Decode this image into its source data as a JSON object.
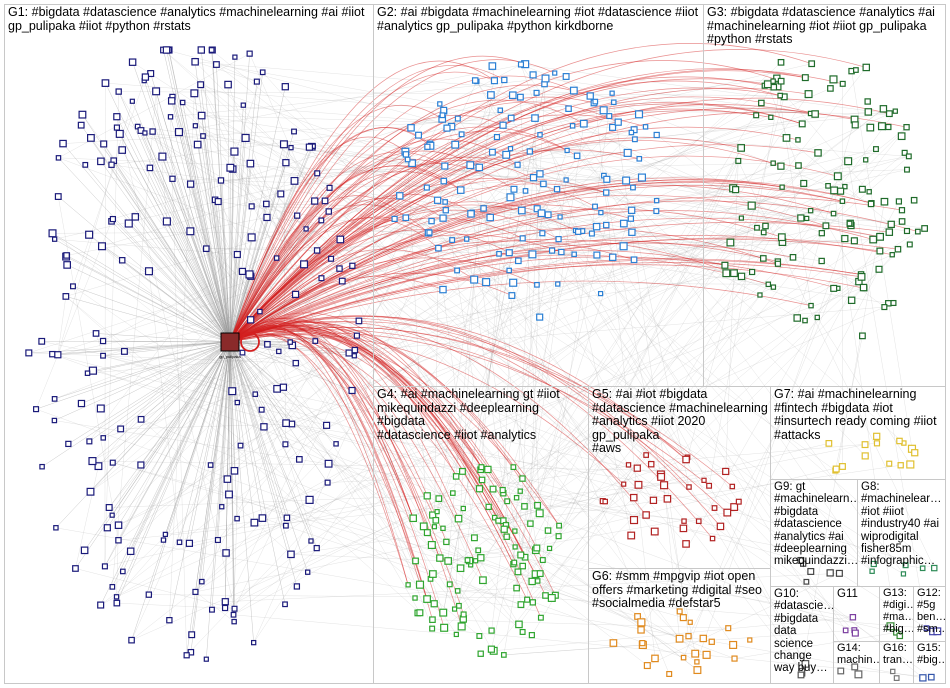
{
  "groups": [
    {
      "id": "G1",
      "label": "G1: #bigdata #datascience #analytics #machinelearning #ai #iiot\ngp_pulipaka #iiot #python #rstats",
      "color": "#1a1a7a"
    },
    {
      "id": "G2",
      "label": "G2: #ai #bigdata #machinelearning #iot #datascience #iiot\n#analytics gp_pulipaka #python kirkdborne",
      "color": "#2a7fd4"
    },
    {
      "id": "G3",
      "label": "G3: #bigdata #datascience #analytics #ai\n#machinelearning #iot #iiot gp_pulipaka\n#python #rstats",
      "color": "#1f6b2a"
    },
    {
      "id": "G4",
      "label": "G4: #ai #machinelearning gt #iiot\nmikequindazzi #deeplearning #bigdata\n#datascience #iiot #analytics",
      "color": "#2fa52f"
    },
    {
      "id": "G5",
      "label": "G5: #ai #iot #bigdata\n#datascience #machinelearning\n#analytics #iiot 2020 gp_pulipaka\n#aws",
      "color": "#b22222"
    },
    {
      "id": "G6",
      "label": "G6: #smm #mpgvip #iot open\noffers #marketing #digital #seo\n#socialmedia #defstar5",
      "color": "#e08a1e"
    },
    {
      "id": "G7",
      "label": "G7: #ai #machinelearning\n#fintech #bigdata #iot\n#insurtech ready coming #iiot\n#attacks",
      "color": "#e0c030"
    },
    {
      "id": "G8",
      "label": "G8:\n#machinelear…\n#iot #iiot\n#industry40 #ai\nwiprodigital\nfisher85m\n#infographic…",
      "color": "#2e8b57"
    },
    {
      "id": "G9",
      "label": "G9: gt\n#machinelearn…\n#bigdata\n#datascience\n#analytics #ai\n#deeplearning\nmikequindazzi…",
      "color": "#444444"
    },
    {
      "id": "G10",
      "label": "G10:\n#datascie…\n#bigdata\ndata\nscience\nchange\nway buy…",
      "color": "#555555"
    },
    {
      "id": "G11",
      "label": "G11",
      "color": "#7b3fa0"
    },
    {
      "id": "G12",
      "label": "G12:\n#5g\nben…\n#sm…",
      "color": "#4444aa"
    },
    {
      "id": "G13",
      "label": "G13:\n#digi…\n#ma…\n#big…",
      "color": "#338833"
    },
    {
      "id": "G14",
      "label": "G14:\nmachin…",
      "color": "#666666"
    },
    {
      "id": "G15",
      "label": "G15:\n#big…",
      "color": "#3355aa"
    },
    {
      "id": "G16",
      "label": "G16:\ntran…",
      "color": "#777777"
    }
  ],
  "colors": {
    "edge": "#9a9a9a",
    "highlight_edge": "#d42020",
    "border": "#c8c8c8"
  },
  "hub_node": "gp_pulipaka"
}
